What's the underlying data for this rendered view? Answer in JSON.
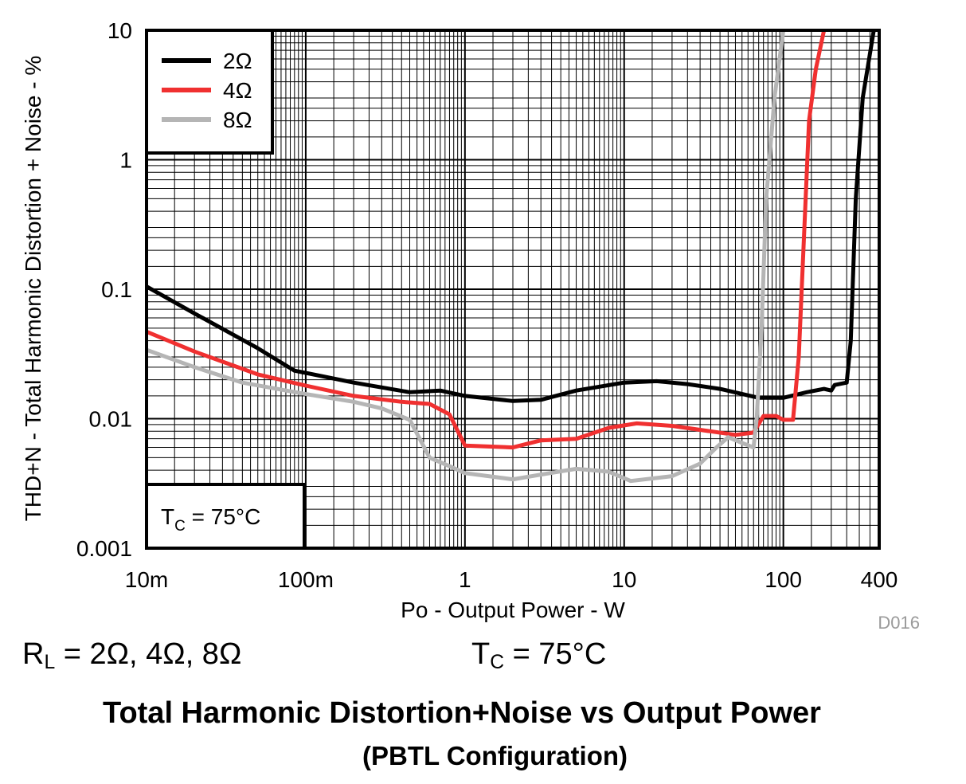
{
  "chart_data": {
    "type": "line",
    "xscale": "log",
    "yscale": "log",
    "xlim": [
      0.01,
      400
    ],
    "ylim": [
      0.001,
      10
    ],
    "xlabel": "Po - Output Power - W",
    "ylabel": "THD+N - Total Harmonic Distortion + Noise - %",
    "x_ticks": [
      {
        "value": 0.01,
        "label": "10m"
      },
      {
        "value": 0.1,
        "label": "100m"
      },
      {
        "value": 1,
        "label": "1"
      },
      {
        "value": 10,
        "label": "10"
      },
      {
        "value": 100,
        "label": "100"
      },
      {
        "value": 400,
        "label": "400"
      }
    ],
    "y_ticks": [
      {
        "value": 0.001,
        "label": "0.001"
      },
      {
        "value": 0.01,
        "label": "0.01"
      },
      {
        "value": 0.1,
        "label": "0.1"
      },
      {
        "value": 1,
        "label": "1"
      },
      {
        "value": 10,
        "label": "10"
      }
    ],
    "grid": true,
    "legend_position": "top-left",
    "annotation": {
      "main": "T",
      "sub": "C",
      "rest": " = 75°C"
    },
    "figure_id": "D016",
    "series": [
      {
        "name": "2Ω",
        "color": "#000000",
        "points": [
          [
            0.01,
            0.105
          ],
          [
            0.02,
            0.065
          ],
          [
            0.05,
            0.035
          ],
          [
            0.085,
            0.0235
          ],
          [
            0.2,
            0.019
          ],
          [
            0.45,
            0.016
          ],
          [
            0.7,
            0.0165
          ],
          [
            1,
            0.015
          ],
          [
            2,
            0.0137
          ],
          [
            3,
            0.014
          ],
          [
            5,
            0.0165
          ],
          [
            10,
            0.019
          ],
          [
            16,
            0.0195
          ],
          [
            25,
            0.0185
          ],
          [
            40,
            0.017
          ],
          [
            70,
            0.0145
          ],
          [
            100,
            0.0145
          ],
          [
            140,
            0.016
          ],
          [
            180,
            0.017
          ],
          [
            200,
            0.0165
          ],
          [
            210,
            0.0182
          ],
          [
            250,
            0.019
          ],
          [
            265,
            0.04
          ],
          [
            285,
            0.5
          ],
          [
            315,
            3
          ],
          [
            370,
            10
          ]
        ]
      },
      {
        "name": "4Ω",
        "color": "#f03030",
        "points": [
          [
            0.01,
            0.047
          ],
          [
            0.02,
            0.033
          ],
          [
            0.05,
            0.022
          ],
          [
            0.1,
            0.018
          ],
          [
            0.2,
            0.015
          ],
          [
            0.4,
            0.0135
          ],
          [
            0.6,
            0.013
          ],
          [
            0.8,
            0.0108
          ],
          [
            1,
            0.0062
          ],
          [
            2,
            0.006
          ],
          [
            3,
            0.0068
          ],
          [
            5,
            0.007
          ],
          [
            8,
            0.0085
          ],
          [
            12,
            0.0092
          ],
          [
            20,
            0.0088
          ],
          [
            30,
            0.0082
          ],
          [
            50,
            0.0075
          ],
          [
            65,
            0.0078
          ],
          [
            75,
            0.0105
          ],
          [
            90,
            0.0105
          ],
          [
            100,
            0.0098
          ],
          [
            115,
            0.0098
          ],
          [
            125,
            0.03
          ],
          [
            145,
            2
          ],
          [
            160,
            5
          ],
          [
            180,
            10
          ]
        ]
      },
      {
        "name": "8Ω",
        "color": "#b5b5b5",
        "points": [
          [
            0.01,
            0.034
          ],
          [
            0.02,
            0.025
          ],
          [
            0.04,
            0.019
          ],
          [
            0.1,
            0.0155
          ],
          [
            0.2,
            0.0135
          ],
          [
            0.3,
            0.012
          ],
          [
            0.45,
            0.0098
          ],
          [
            0.6,
            0.005
          ],
          [
            0.8,
            0.0043
          ],
          [
            1,
            0.0038
          ],
          [
            2,
            0.0034
          ],
          [
            3,
            0.0037
          ],
          [
            5,
            0.0041
          ],
          [
            8,
            0.0039
          ],
          [
            11,
            0.0033
          ],
          [
            20,
            0.0036
          ],
          [
            30,
            0.0045
          ],
          [
            38,
            0.006
          ],
          [
            45,
            0.0072
          ],
          [
            55,
            0.0065
          ],
          [
            65,
            0.006
          ],
          [
            68,
            0.01
          ],
          [
            73,
            0.05
          ],
          [
            78,
            0.5
          ],
          [
            88,
            3
          ],
          [
            100,
            10
          ]
        ]
      }
    ]
  },
  "conditions": {
    "rl": {
      "main": "R",
      "sub": "L",
      "rest": " = 2Ω, 4Ω, 8Ω"
    },
    "tc": {
      "main": "T",
      "sub": "C",
      "rest": " = 75°C"
    }
  },
  "figure": {
    "title": "Total Harmonic Distortion+Noise vs Output Power",
    "subtitle": "(PBTL Configuration)"
  }
}
